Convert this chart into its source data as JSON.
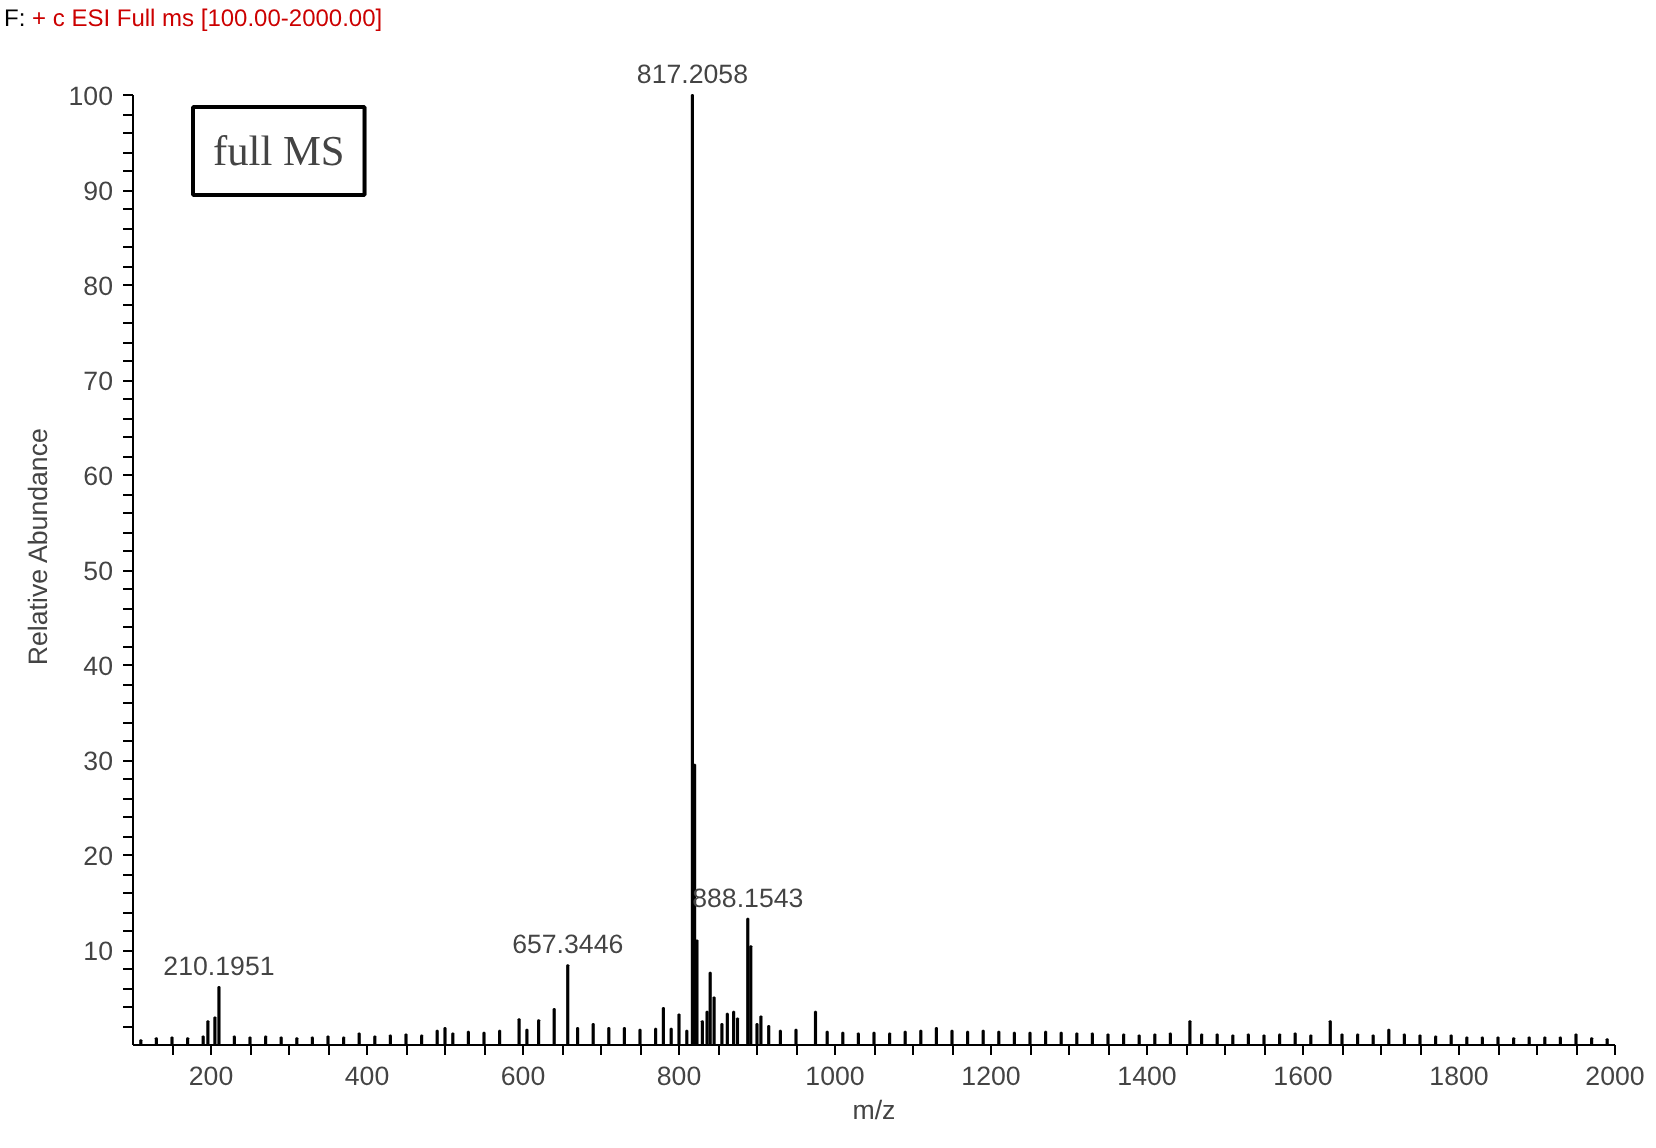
{
  "chart_data": {
    "type": "bar",
    "title": "F:",
    "subtitle": "+ c ESI Full ms [100.00-2000.00]",
    "xlabel": "m/z",
    "ylabel": "Relative Abundance",
    "color": "#000000",
    "grid": false,
    "x": [
      110,
      130,
      150,
      170,
      190,
      196,
      205,
      210.1951,
      230,
      250,
      270,
      290,
      310,
      330,
      350,
      370,
      390,
      410,
      430,
      450,
      470,
      490,
      500,
      510,
      530,
      550,
      570,
      595,
      605,
      620,
      640,
      657.3446,
      670,
      690,
      710,
      730,
      750,
      770,
      780,
      790,
      800,
      810,
      817.2058,
      820,
      823,
      830,
      836,
      840,
      845,
      855,
      862,
      870,
      875,
      888.1543,
      892,
      900,
      905,
      915,
      930,
      950,
      975,
      990,
      1010,
      1030,
      1050,
      1070,
      1090,
      1110,
      1130,
      1150,
      1170,
      1190,
      1210,
      1230,
      1250,
      1270,
      1290,
      1310,
      1330,
      1350,
      1370,
      1390,
      1410,
      1430,
      1455,
      1470,
      1490,
      1510,
      1530,
      1550,
      1570,
      1590,
      1610,
      1635,
      1650,
      1670,
      1690,
      1710,
      1730,
      1750,
      1770,
      1790,
      1810,
      1830,
      1850,
      1870,
      1890,
      1910,
      1930,
      1950,
      1970,
      1990
    ],
    "values": [
      0.5,
      0.7,
      0.8,
      0.7,
      0.9,
      2.5,
      2.9,
      6.1,
      0.9,
      0.8,
      0.9,
      0.8,
      0.7,
      0.8,
      0.9,
      0.8,
      1.2,
      0.9,
      1.0,
      1.1,
      1.0,
      1.5,
      1.8,
      1.2,
      1.4,
      1.3,
      1.5,
      2.7,
      1.6,
      2.6,
      3.8,
      8.4,
      1.8,
      2.2,
      1.8,
      1.8,
      1.6,
      1.7,
      3.9,
      1.7,
      3.2,
      1.5,
      100,
      29.5,
      11,
      2.5,
      3.5,
      7.6,
      5,
      2.2,
      3.3,
      3.5,
      2.8,
      13.3,
      10.4,
      2.2,
      3,
      2,
      1.5,
      1.6,
      3.5,
      1.4,
      1.3,
      1.2,
      1.3,
      1.2,
      1.4,
      1.5,
      1.8,
      1.5,
      1.4,
      1.5,
      1.4,
      1.3,
      1.3,
      1.4,
      1.3,
      1.2,
      1.2,
      1.1,
      1.1,
      1.0,
      1.1,
      1.2,
      2.5,
      1.1,
      1.1,
      1.0,
      1.1,
      1.0,
      1.1,
      1.2,
      1.0,
      2.5,
      1.1,
      1.1,
      1.0,
      1.6,
      1.1,
      1.0,
      0.9,
      1.0,
      0.8,
      0.8,
      0.8,
      0.7,
      0.8,
      0.8,
      0.8,
      1.1,
      0.7,
      0.6
    ],
    "xlim": [
      100,
      2000
    ],
    "ylim": [
      0,
      100
    ],
    "xticks": [
      {
        "value": 150,
        "label": null
      },
      200,
      {
        "value": 250,
        "label": null
      },
      {
        "value": 300,
        "label": null
      },
      {
        "value": 350,
        "label": null
      },
      400,
      {
        "value": 450,
        "label": null
      },
      {
        "value": 500,
        "label": null
      },
      {
        "value": 550,
        "label": null
      },
      600,
      {
        "value": 650,
        "label": null
      },
      {
        "value": 700,
        "label": null
      },
      {
        "value": 750,
        "label": null
      },
      800,
      {
        "value": 850,
        "label": null
      },
      {
        "value": 900,
        "label": null
      },
      {
        "value": 950,
        "label": null
      },
      1000,
      {
        "value": 1050,
        "label": null
      },
      {
        "value": 1100,
        "label": null
      },
      {
        "value": 1150,
        "label": null
      },
      1200,
      {
        "value": 1250,
        "label": null
      },
      {
        "value": 1300,
        "label": null
      },
      {
        "value": 1350,
        "label": null
      },
      1400,
      {
        "value": 1450,
        "label": null
      },
      {
        "value": 1500,
        "label": null
      },
      {
        "value": 1550,
        "label": null
      },
      1600,
      {
        "value": 1650,
        "label": null
      },
      {
        "value": 1700,
        "label": null
      },
      {
        "value": 1750,
        "label": null
      },
      1800,
      {
        "value": 1850,
        "label": null
      },
      {
        "value": 1900,
        "label": null
      },
      {
        "value": 1950,
        "label": null
      },
      2000
    ],
    "yticks": [
      {
        "value": 2,
        "label": null
      },
      {
        "value": 4,
        "label": null
      },
      {
        "value": 6,
        "label": null
      },
      {
        "value": 8,
        "label": null
      },
      10,
      {
        "value": 12,
        "label": null
      },
      {
        "value": 14,
        "label": null
      },
      {
        "value": 16,
        "label": null
      },
      {
        "value": 18,
        "label": null
      },
      20,
      {
        "value": 22,
        "label": null
      },
      {
        "value": 24,
        "label": null
      },
      {
        "value": 26,
        "label": null
      },
      {
        "value": 28,
        "label": null
      },
      30,
      {
        "value": 32,
        "label": null
      },
      {
        "value": 34,
        "label": null
      },
      {
        "value": 36,
        "label": null
      },
      {
        "value": 38,
        "label": null
      },
      40,
      {
        "value": 42,
        "label": null
      },
      {
        "value": 44,
        "label": null
      },
      {
        "value": 46,
        "label": null
      },
      {
        "value": 48,
        "label": null
      },
      50,
      {
        "value": 52,
        "label": null
      },
      {
        "value": 54,
        "label": null
      },
      {
        "value": 56,
        "label": null
      },
      {
        "value": 58,
        "label": null
      },
      60,
      {
        "value": 62,
        "label": null
      },
      {
        "value": 64,
        "label": null
      },
      {
        "value": 66,
        "label": null
      },
      {
        "value": 68,
        "label": null
      },
      70,
      {
        "value": 72,
        "label": null
      },
      {
        "value": 74,
        "label": null
      },
      {
        "value": 76,
        "label": null
      },
      {
        "value": 78,
        "label": null
      },
      80,
      {
        "value": 82,
        "label": null
      },
      {
        "value": 84,
        "label": null
      },
      {
        "value": 86,
        "label": null
      },
      {
        "value": 88,
        "label": null
      },
      90,
      {
        "value": 92,
        "label": null
      },
      {
        "value": 94,
        "label": null
      },
      {
        "value": 96,
        "label": null
      },
      {
        "value": 98,
        "label": null
      },
      100
    ],
    "annotations": [
      "full MS",
      {
        "text": "817.2058",
        "x": 817.2058,
        "y": 100
      },
      {
        "text": "888.1543",
        "x": 888.1543,
        "y": 13.3
      },
      {
        "text": "657.3446",
        "x": 657.3446,
        "y": 8.4
      },
      {
        "text": "210.1951",
        "x": 210.1951,
        "y": 6.1
      }
    ]
  }
}
